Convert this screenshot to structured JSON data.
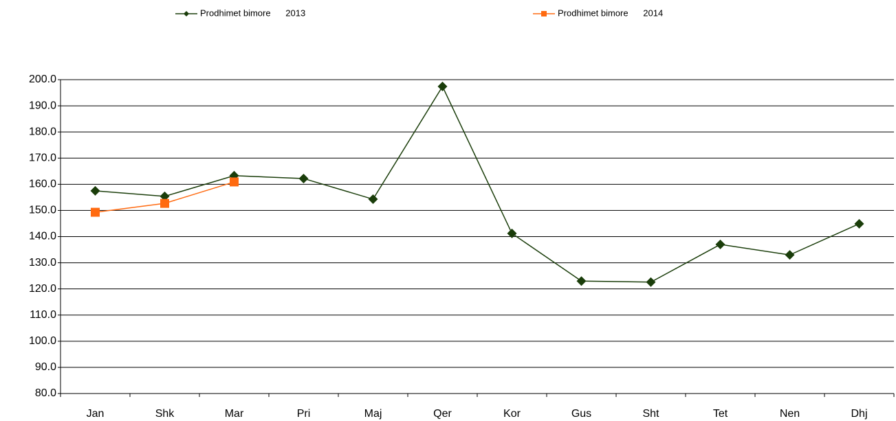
{
  "chart_data": {
    "type": "line",
    "categories": [
      "Jan",
      "Shk",
      "Mar",
      "Pri",
      "Maj",
      "Qer",
      "Kor",
      "Gus",
      "Sht",
      "Tet",
      "Nen",
      "Dhj"
    ],
    "series": [
      {
        "name": "Prodhimet bimore      2013",
        "color": "#1a3d0a",
        "marker": "diamond",
        "values": [
          157.5,
          155.4,
          163.3,
          162.2,
          154.3,
          197.4,
          141.2,
          123.0,
          122.6,
          137.0,
          133.0,
          144.9
        ]
      },
      {
        "name": "Prodhimet bimore      2014",
        "color": "#ff6a10",
        "marker": "square",
        "values": [
          149.3,
          152.7,
          160.9,
          null,
          null,
          null,
          null,
          null,
          null,
          null,
          null,
          null
        ]
      }
    ],
    "ylim": [
      80,
      200
    ],
    "yticks": [
      {
        "value": 80,
        "label": "80.0"
      },
      {
        "value": 90,
        "label": "90.0"
      },
      {
        "value": 100,
        "label": "100.0"
      },
      {
        "value": 110,
        "label": "110.0"
      },
      {
        "value": 120,
        "label": "120.0"
      },
      {
        "value": 130,
        "label": "130.0"
      },
      {
        "value": 140,
        "label": "140.0"
      },
      {
        "value": 150,
        "label": "150.0"
      },
      {
        "value": 160,
        "label": "160.0"
      },
      {
        "value": 170,
        "label": "170.0"
      },
      {
        "value": 180,
        "label": "180.0"
      },
      {
        "value": 190,
        "label": "190.0"
      },
      {
        "value": 200,
        "label": "200.0"
      }
    ],
    "grid": true,
    "legend": "top"
  }
}
